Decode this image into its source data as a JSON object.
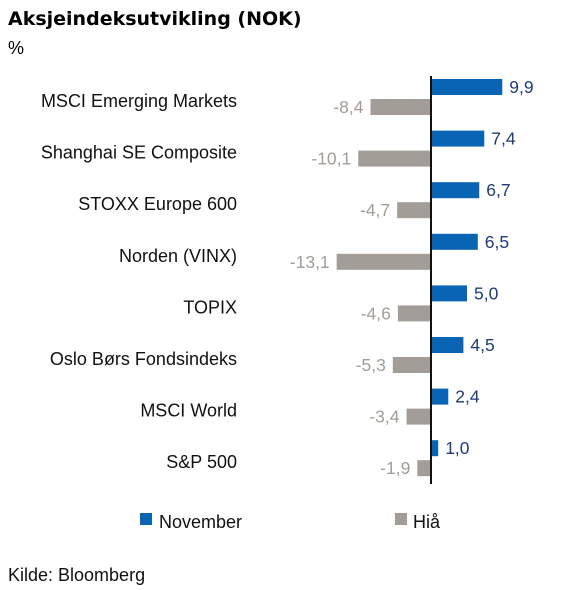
{
  "chart_data": {
    "type": "bar",
    "orientation": "horizontal",
    "title": "Aksjeindeksutvikling (NOK)",
    "unit": "%",
    "categories": [
      "MSCI Emerging Markets",
      "Shanghai SE Composite",
      "STOXX Europe 600",
      "Norden (VINX)",
      "TOPIX",
      "Oslo Børs Fondsindeks",
      "MSCI World",
      "S&P 500"
    ],
    "series": [
      {
        "name": "November",
        "color": "#0a64b4",
        "label_color": "#1f3a78",
        "values": [
          9.9,
          7.4,
          6.7,
          6.5,
          5.0,
          4.5,
          2.4,
          1.0
        ],
        "labels": [
          "9,9",
          "7,4",
          "6,7",
          "6,5",
          "5,0",
          "4,5",
          "2,4",
          "1,0"
        ]
      },
      {
        "name": "Hiå",
        "color": "#a39d97",
        "label_color": "#a39d97",
        "values": [
          -8.4,
          -10.1,
          -4.7,
          -13.1,
          -4.6,
          -5.3,
          -3.4,
          -1.9
        ],
        "labels": [
          "-8,4",
          "-10,1",
          "-4,7",
          "-13,1",
          "-4,6",
          "-5,3",
          "-3,4",
          "-1,9"
        ]
      }
    ],
    "legend_position": "bottom",
    "grid": false,
    "source": "Kilde: Bloomberg"
  }
}
